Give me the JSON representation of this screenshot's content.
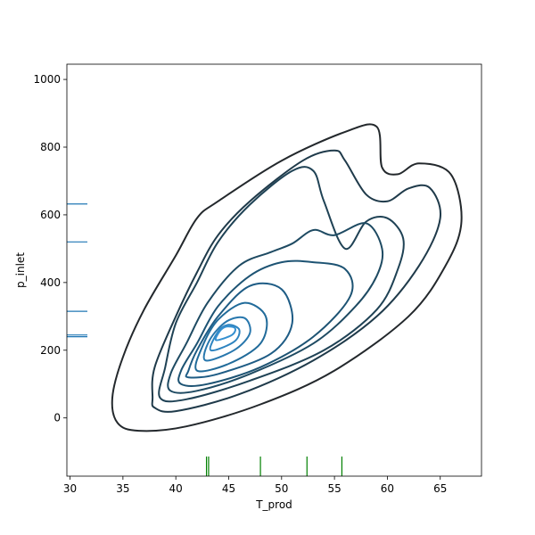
{
  "chart_data": {
    "type": "contour",
    "title": "",
    "xlabel": "T_prod",
    "ylabel": "p_inlet",
    "xlim": [
      29.7,
      68.9
    ],
    "ylim": [
      -172,
      1045
    ],
    "xticks": [
      30,
      35,
      40,
      45,
      50,
      55,
      60,
      65
    ],
    "yticks": [
      0,
      200,
      400,
      600,
      800,
      1000
    ],
    "grid": false,
    "legend": "none",
    "contour_levels": [
      {
        "level": 1,
        "color": "#23282c",
        "points": [
          [
            34.5,
            -15
          ],
          [
            36.5,
            -38
          ],
          [
            41,
            -25
          ],
          [
            48,
            40
          ],
          [
            55,
            140
          ],
          [
            62,
            300
          ],
          [
            65.5,
            450
          ],
          [
            67,
            580
          ],
          [
            66,
            720
          ],
          [
            63,
            752
          ],
          [
            61,
            720
          ],
          [
            59.5,
            740
          ],
          [
            59,
            860
          ],
          [
            56,
            845
          ],
          [
            50,
            760
          ],
          [
            44,
            640
          ],
          [
            42,
            590
          ],
          [
            40,
            480
          ],
          [
            37,
            320
          ],
          [
            35,
            180
          ],
          [
            34,
            60
          ],
          [
            34.5,
            -15
          ]
        ]
      },
      {
        "level": 2,
        "color": "#1f3a4a",
        "points": [
          [
            38,
            30
          ],
          [
            40,
            20
          ],
          [
            46,
            70
          ],
          [
            53,
            170
          ],
          [
            59,
            300
          ],
          [
            63,
            450
          ],
          [
            65,
            590
          ],
          [
            64,
            680
          ],
          [
            62,
            678
          ],
          [
            60,
            640
          ],
          [
            58,
            660
          ],
          [
            56,
            760
          ],
          [
            55,
            790
          ],
          [
            52,
            760
          ],
          [
            47,
            640
          ],
          [
            44,
            540
          ],
          [
            42,
            430
          ],
          [
            40,
            300
          ],
          [
            38,
            150
          ],
          [
            37.8,
            60
          ],
          [
            38,
            30
          ]
        ]
      },
      {
        "level": 3,
        "color": "#1f4255",
        "points": [
          [
            38.5,
            60
          ],
          [
            41,
            55
          ],
          [
            47,
            110
          ],
          [
            54,
            200
          ],
          [
            59,
            320
          ],
          [
            61,
            440
          ],
          [
            61.5,
            530
          ],
          [
            60,
            590
          ],
          [
            58,
            580
          ],
          [
            56,
            500
          ],
          [
            54,
            640
          ],
          [
            53,
            730
          ],
          [
            51,
            730
          ],
          [
            47,
            630
          ],
          [
            44,
            520
          ],
          [
            42,
            400
          ],
          [
            40,
            280
          ],
          [
            39,
            150
          ],
          [
            38.5,
            60
          ]
        ]
      },
      {
        "level": 4,
        "color": "#1e4a62",
        "points": [
          [
            39.5,
            80
          ],
          [
            42,
            80
          ],
          [
            47,
            130
          ],
          [
            53,
            220
          ],
          [
            57,
            330
          ],
          [
            59,
            420
          ],
          [
            59.5,
            500
          ],
          [
            58,
            575
          ],
          [
            55,
            540
          ],
          [
            53,
            555
          ],
          [
            51,
            515
          ],
          [
            49,
            490
          ],
          [
            46,
            450
          ],
          [
            43,
            340
          ],
          [
            41,
            220
          ],
          [
            39.5,
            130
          ],
          [
            39.5,
            80
          ]
        ]
      },
      {
        "level": 5,
        "color": "#1d5373",
        "points": [
          [
            40.5,
            100
          ],
          [
            43,
            100
          ],
          [
            48,
            150
          ],
          [
            53,
            240
          ],
          [
            56.5,
            360
          ],
          [
            56,
            440
          ],
          [
            53,
            460
          ],
          [
            50,
            460
          ],
          [
            47,
            420
          ],
          [
            44,
            330
          ],
          [
            42,
            220
          ],
          [
            40.5,
            140
          ],
          [
            40.5,
            100
          ]
        ]
      },
      {
        "level": 6,
        "color": "#1e5c85",
        "points": [
          [
            41.2,
            120
          ],
          [
            44,
            130
          ],
          [
            49,
            190
          ],
          [
            51,
            280
          ],
          [
            50,
            380
          ],
          [
            47,
            390
          ],
          [
            44,
            300
          ],
          [
            42,
            200
          ],
          [
            41.2,
            140
          ],
          [
            41.2,
            120
          ]
        ]
      },
      {
        "level": 7,
        "color": "#216b9a",
        "points": [
          [
            42,
            140
          ],
          [
            45,
            160
          ],
          [
            48,
            220
          ],
          [
            48.5,
            300
          ],
          [
            46.5,
            340
          ],
          [
            44,
            290
          ],
          [
            42.5,
            210
          ],
          [
            42,
            140
          ]
        ]
      },
      {
        "level": 8,
        "color": "#2877ad",
        "points": [
          [
            42.8,
            170
          ],
          [
            45.5,
            200
          ],
          [
            47,
            250
          ],
          [
            46.5,
            295
          ],
          [
            44.8,
            285
          ],
          [
            43.2,
            230
          ],
          [
            42.8,
            170
          ]
        ]
      },
      {
        "level": 9,
        "color": "#2e84c0",
        "points": [
          [
            43.3,
            200
          ],
          [
            45.5,
            225
          ],
          [
            46,
            260
          ],
          [
            45,
            275
          ],
          [
            44,
            255
          ],
          [
            43.3,
            200
          ]
        ]
      },
      {
        "level": 10,
        "color": "#3590d0",
        "points": [
          [
            43.8,
            230
          ],
          [
            45.3,
            245
          ],
          [
            45.6,
            265
          ],
          [
            44.8,
            270
          ],
          [
            44.2,
            258
          ],
          [
            43.8,
            230
          ]
        ]
      }
    ],
    "rug_x": [
      42.9,
      43.1,
      48,
      52.4,
      55.7
    ],
    "rug_y": [
      240,
      245,
      315,
      520,
      632
    ],
    "rug_x_color": "#008000",
    "rug_y_color": "#1f77b4"
  }
}
